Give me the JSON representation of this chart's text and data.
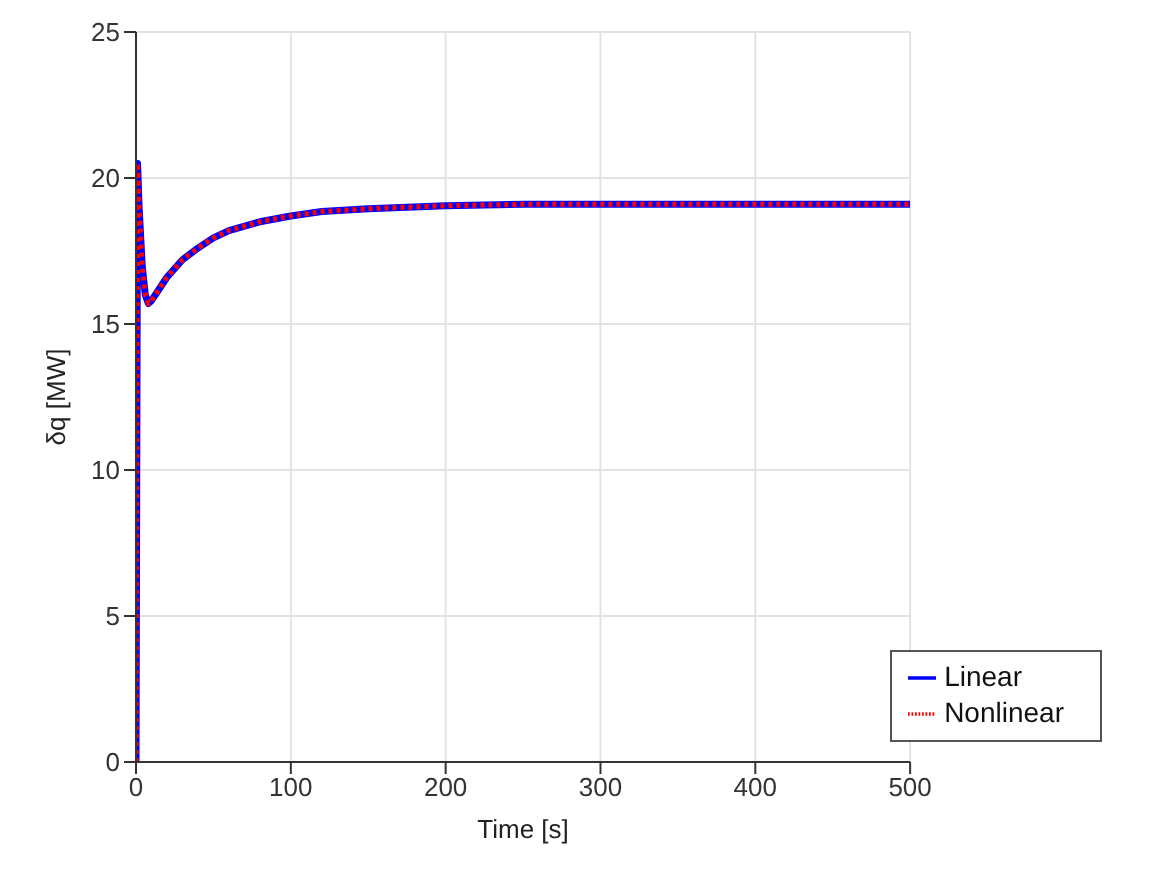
{
  "chart_data": {
    "type": "line",
    "xlabel": "Time [s]",
    "ylabel": "δq [MW]",
    "xlim": [
      0,
      500
    ],
    "ylim": [
      0,
      25
    ],
    "xticks": [
      0,
      100,
      200,
      300,
      400,
      500
    ],
    "yticks": [
      0,
      5,
      10,
      15,
      20,
      25
    ],
    "grid": true,
    "legend": "bottom right",
    "marker": "none",
    "x": [
      0,
      1,
      2,
      4,
      6,
      8,
      10,
      15,
      20,
      30,
      40,
      50,
      60,
      80,
      100,
      120,
      150,
      200,
      250,
      300,
      400,
      500
    ],
    "series": [
      {
        "name": "Linear",
        "color": "#0000ff",
        "line_style": "solid",
        "values": [
          0,
          20.5,
          19,
          17,
          16,
          15.7,
          15.8,
          16.2,
          16.6,
          17.2,
          17.6,
          17.95,
          18.2,
          18.5,
          18.7,
          18.85,
          18.95,
          19.05,
          19.1,
          19.1,
          19.1,
          19.1
        ]
      },
      {
        "name": "Nonlinear",
        "color": "#ff0000",
        "line_style": "dotted",
        "values": [
          0,
          20.5,
          19,
          17,
          16,
          15.7,
          15.8,
          16.2,
          16.6,
          17.2,
          17.6,
          17.95,
          18.2,
          18.5,
          18.7,
          18.85,
          18.95,
          19.05,
          19.1,
          19.1,
          19.1,
          19.1
        ]
      }
    ]
  }
}
